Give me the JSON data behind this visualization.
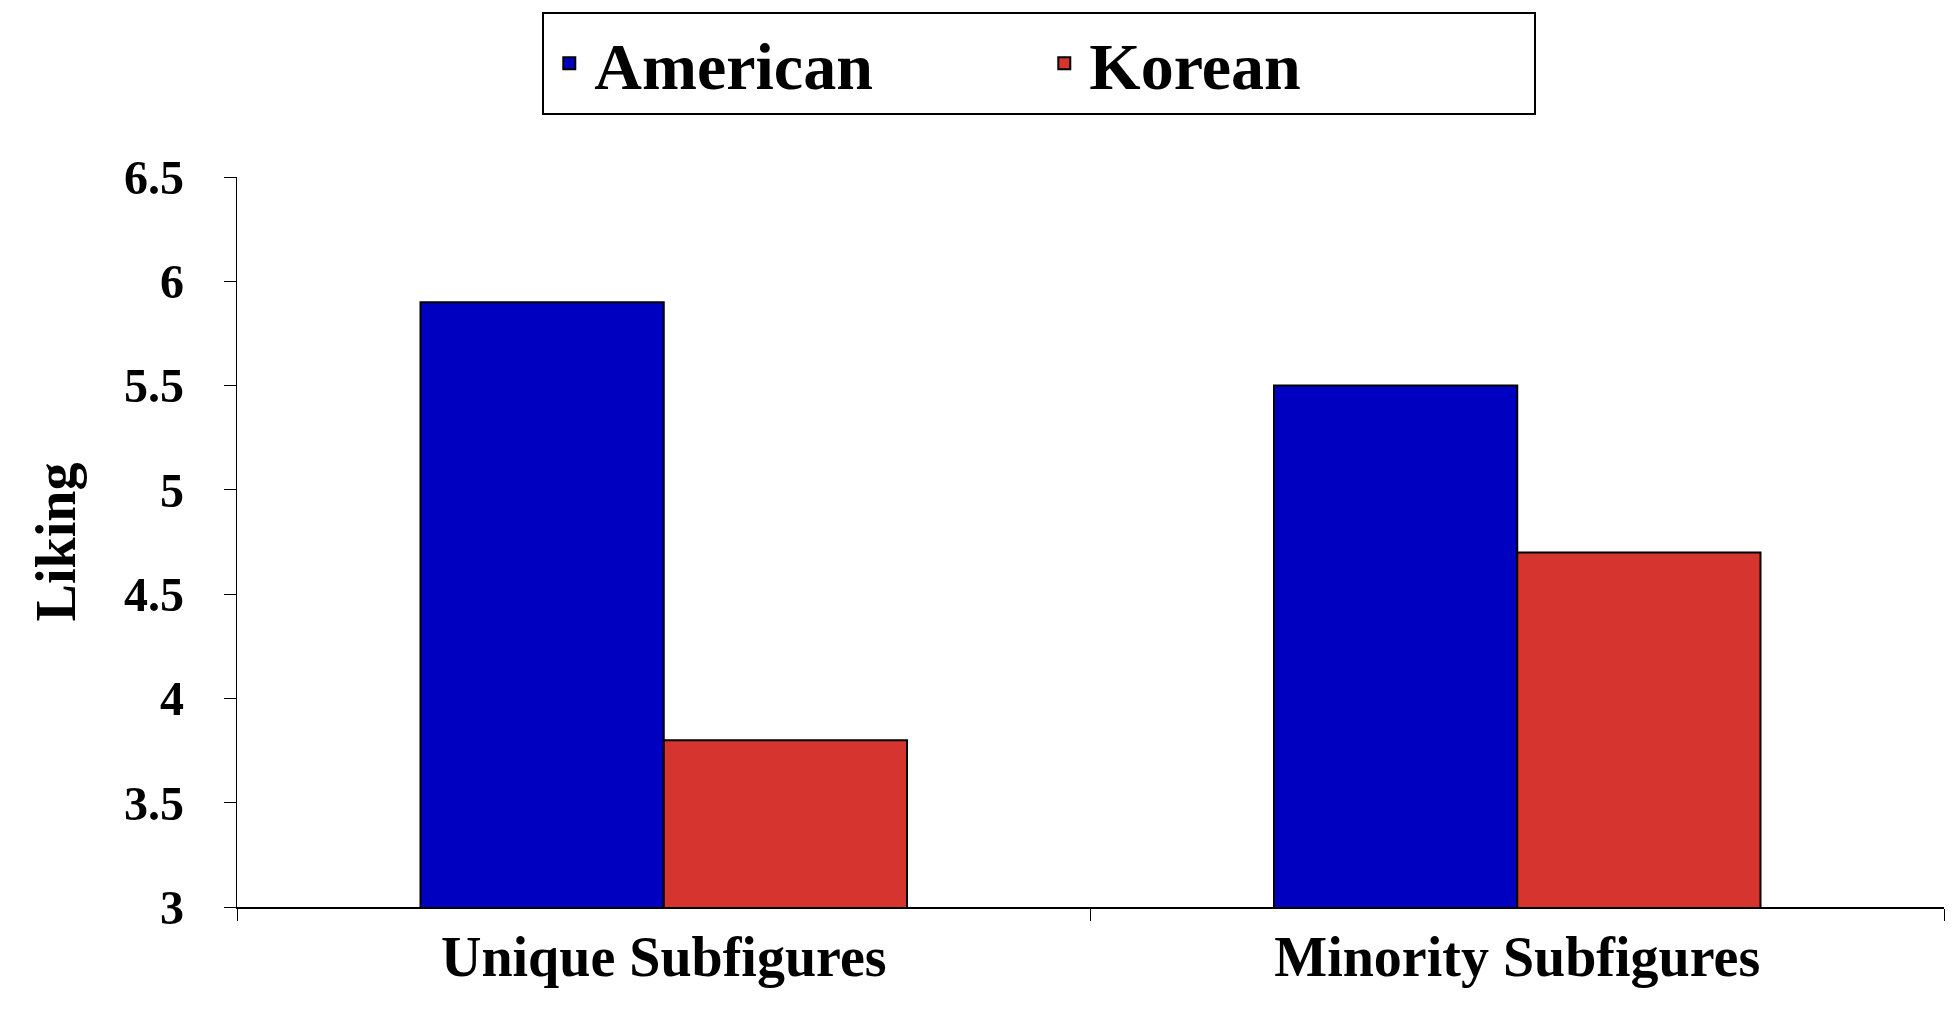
{
  "chart_data": {
    "type": "bar",
    "ylabel": "Liking",
    "categories": [
      "Unique Subfigures",
      "Minority Subfigures"
    ],
    "series": [
      {
        "name": "American",
        "color": "#0000c0",
        "values": [
          5.9,
          5.5
        ]
      },
      {
        "name": "Korean",
        "color": "#d6342e",
        "values": [
          3.8,
          4.7
        ]
      }
    ],
    "ylim": [
      3,
      6.5
    ],
    "yticks": [
      3,
      3.5,
      4,
      4.5,
      5,
      5.5,
      6,
      6.5
    ],
    "grid": false,
    "legend": "top"
  }
}
